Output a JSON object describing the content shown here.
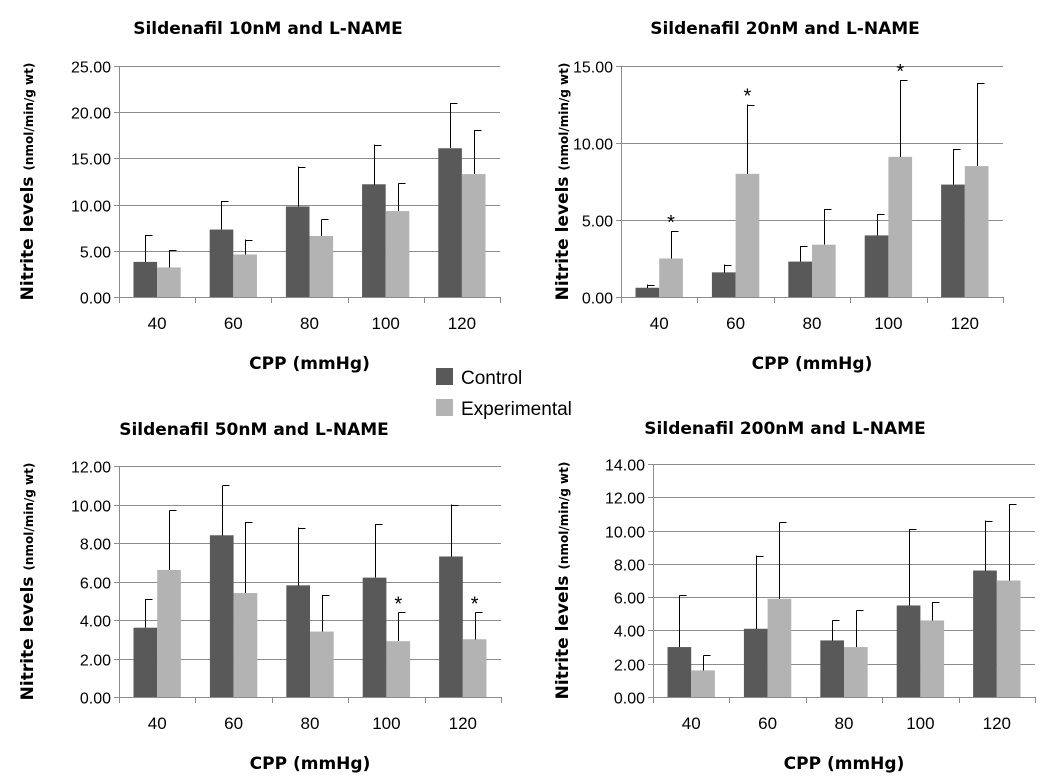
{
  "legend": {
    "items": [
      {
        "label": "Control",
        "color": "#595959"
      },
      {
        "label": "Experimental",
        "color": "#b3b3b3"
      }
    ]
  },
  "chart_data": [
    {
      "type": "bar",
      "title": "Sildenafil 10nM and L-NAME",
      "xlabel": "CPP (mmHg)",
      "ylabel_main": "Nitrite levels",
      "ylabel_unit": "(nmol/min/g wt)",
      "categories": [
        "40",
        "60",
        "80",
        "100",
        "120"
      ],
      "ylim": [
        0,
        25
      ],
      "yticks": [
        0,
        5,
        10,
        15,
        20,
        25
      ],
      "ytick_labels": [
        "0.00",
        "5.00",
        "10.00",
        "15.00",
        "20.00",
        "25.00"
      ],
      "grid": "horizontal",
      "series": [
        {
          "name": "Control",
          "values": [
            3.8,
            7.3,
            9.8,
            12.2,
            16.1
          ],
          "errors": [
            2.9,
            3.1,
            4.3,
            4.3,
            4.9
          ]
        },
        {
          "name": "Experimental",
          "values": [
            3.2,
            4.6,
            6.6,
            9.3,
            13.3
          ],
          "errors": [
            1.9,
            1.6,
            1.8,
            3.0,
            4.8
          ]
        }
      ],
      "significance": []
    },
    {
      "type": "bar",
      "title": "Sildenafil 20nM and L-NAME",
      "xlabel": "CPP (mmHg)",
      "ylabel_main": "Nitrite levels",
      "ylabel_unit": "(nmol/min/g wt)",
      "categories": [
        "40",
        "60",
        "80",
        "100",
        "120"
      ],
      "ylim": [
        0,
        15
      ],
      "yticks": [
        0,
        5,
        10,
        15
      ],
      "ytick_labels": [
        "0.00",
        "5.00",
        "10.00",
        "15.00"
      ],
      "grid": "horizontal",
      "series": [
        {
          "name": "Control",
          "values": [
            0.6,
            1.6,
            2.3,
            4.0,
            7.3
          ],
          "errors": [
            0.2,
            0.5,
            1.0,
            1.4,
            2.3
          ]
        },
        {
          "name": "Experimental",
          "values": [
            2.5,
            8.0,
            3.4,
            9.1,
            8.5
          ],
          "errors": [
            1.8,
            4.5,
            2.3,
            5.0,
            5.4
          ]
        }
      ],
      "significance": [
        {
          "category_index": 0,
          "series_index": 1,
          "label": "*"
        },
        {
          "category_index": 1,
          "series_index": 1,
          "label": "*"
        },
        {
          "category_index": 3,
          "series_index": 1,
          "label": "*"
        }
      ]
    },
    {
      "type": "bar",
      "title": "Sildenafil 50nM and L-NAME",
      "xlabel": "CPP (mmHg)",
      "ylabel_main": "Nitrite levels",
      "ylabel_unit": "(nmol/min/g wt)",
      "categories": [
        "40",
        "60",
        "80",
        "100",
        "120"
      ],
      "ylim": [
        0,
        12
      ],
      "yticks": [
        0,
        2,
        4,
        6,
        8,
        10,
        12
      ],
      "ytick_labels": [
        "0.00",
        "2.00",
        "4.00",
        "6.00",
        "8.00",
        "10.00",
        "12.00"
      ],
      "grid": "horizontal",
      "series": [
        {
          "name": "Control",
          "values": [
            3.6,
            8.4,
            5.8,
            6.2,
            7.3
          ],
          "errors": [
            1.5,
            2.6,
            3.0,
            2.8,
            2.7
          ]
        },
        {
          "name": "Experimental",
          "values": [
            6.6,
            5.4,
            3.4,
            2.9,
            3.0
          ],
          "errors": [
            3.1,
            3.7,
            1.9,
            1.5,
            1.4
          ]
        }
      ],
      "significance": [
        {
          "category_index": 3,
          "series_index": 1,
          "label": "*"
        },
        {
          "category_index": 4,
          "series_index": 1,
          "label": "*"
        }
      ]
    },
    {
      "type": "bar",
      "title": "Sildenafil 200nM and L-NAME",
      "xlabel": "CPP (mmHg)",
      "ylabel_main": "Nitrite levels",
      "ylabel_unit": "(nmol/min/g wt)",
      "categories": [
        "40",
        "60",
        "80",
        "100",
        "120"
      ],
      "ylim": [
        0,
        14
      ],
      "yticks": [
        0,
        2,
        4,
        6,
        8,
        10,
        12,
        14
      ],
      "ytick_labels": [
        "0.00",
        "2.00",
        "4.00",
        "6.00",
        "8.00",
        "10.00",
        "12.00",
        "14.00"
      ],
      "grid": "horizontal",
      "series": [
        {
          "name": "Control",
          "values": [
            3.0,
            4.1,
            3.4,
            5.5,
            7.6
          ],
          "errors": [
            3.1,
            4.4,
            1.2,
            4.6,
            3.0
          ]
        },
        {
          "name": "Experimental",
          "values": [
            1.6,
            5.9,
            3.0,
            4.6,
            7.0
          ],
          "errors": [
            0.9,
            4.6,
            2.2,
            1.1,
            4.6
          ]
        }
      ],
      "significance": []
    }
  ]
}
